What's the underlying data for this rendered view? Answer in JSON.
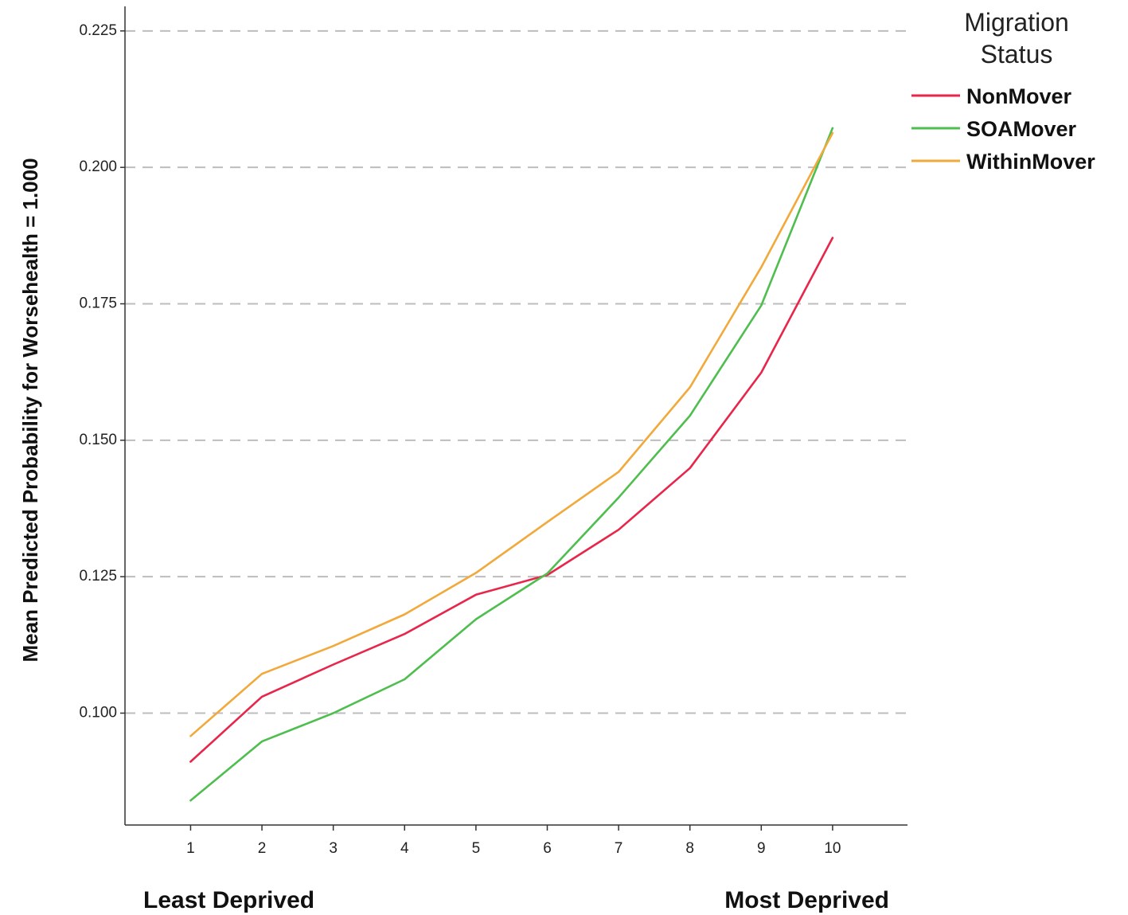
{
  "chart_data": {
    "type": "line",
    "xlabel": "",
    "ylabel": "Mean Predicted Probability for Worsehealth = 1.000",
    "x": [
      1,
      2,
      3,
      4,
      5,
      6,
      7,
      8,
      9,
      10
    ],
    "x_end_labels": {
      "left": "Least Deprived",
      "right": "Most Deprived"
    },
    "xlim": [
      0.08,
      11.05
    ],
    "ylim": [
      0.0795,
      0.2295
    ],
    "yticks": [
      0.1,
      0.125,
      0.15,
      0.175,
      0.2,
      0.225
    ],
    "ytick_labels": [
      "0.100",
      "0.125",
      "0.150",
      "0.175",
      "0.200",
      "0.225"
    ],
    "grid": "horizontal dashed",
    "legend": {
      "title_lines": [
        "Migration",
        "Status"
      ],
      "placement": "top-right outside"
    },
    "series": [
      {
        "name": "NonMover",
        "color": "#e8254a",
        "values": [
          0.0911,
          0.103,
          0.1089,
          0.1145,
          0.1217,
          0.1253,
          0.1336,
          0.1449,
          0.1624,
          0.1871
        ]
      },
      {
        "name": "SOAMover",
        "color": "#4ebe4e",
        "values": [
          0.084,
          0.0948,
          0.1,
          0.1062,
          0.1172,
          0.1256,
          0.1395,
          0.1545,
          0.1747,
          0.2072
        ]
      },
      {
        "name": "WithinMover",
        "color": "#f2a93b",
        "values": [
          0.0958,
          0.1072,
          0.1123,
          0.1181,
          0.1257,
          0.135,
          0.1442,
          0.1597,
          0.1817,
          0.2063
        ]
      }
    ]
  }
}
